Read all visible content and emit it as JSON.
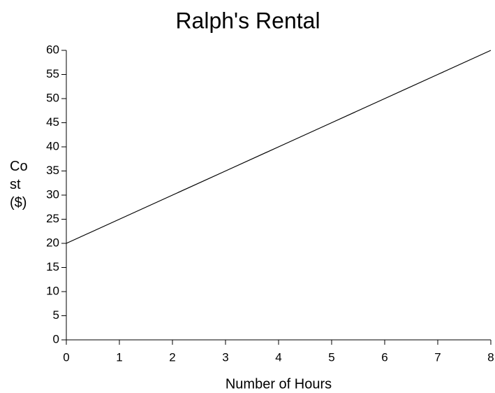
{
  "chart_data": {
    "type": "line",
    "title": "Ralph's Rental",
    "x_label": "Number of Hours",
    "y_label": "Cost ($)",
    "x": [
      0,
      1,
      2,
      3,
      4,
      5,
      6,
      7,
      8
    ],
    "series": [
      {
        "color": "#000000",
        "values": [
          20,
          25,
          30,
          35,
          40,
          45,
          50,
          55,
          60
        ]
      }
    ],
    "xlim": [
      0,
      8
    ],
    "xticks": [
      0,
      1,
      2,
      3,
      4,
      5,
      6,
      7,
      8
    ],
    "ylim": [
      0,
      60
    ],
    "yticks": [
      0,
      5,
      10,
      15,
      20,
      25,
      30,
      35,
      40,
      45,
      50,
      55,
      60
    ]
  }
}
